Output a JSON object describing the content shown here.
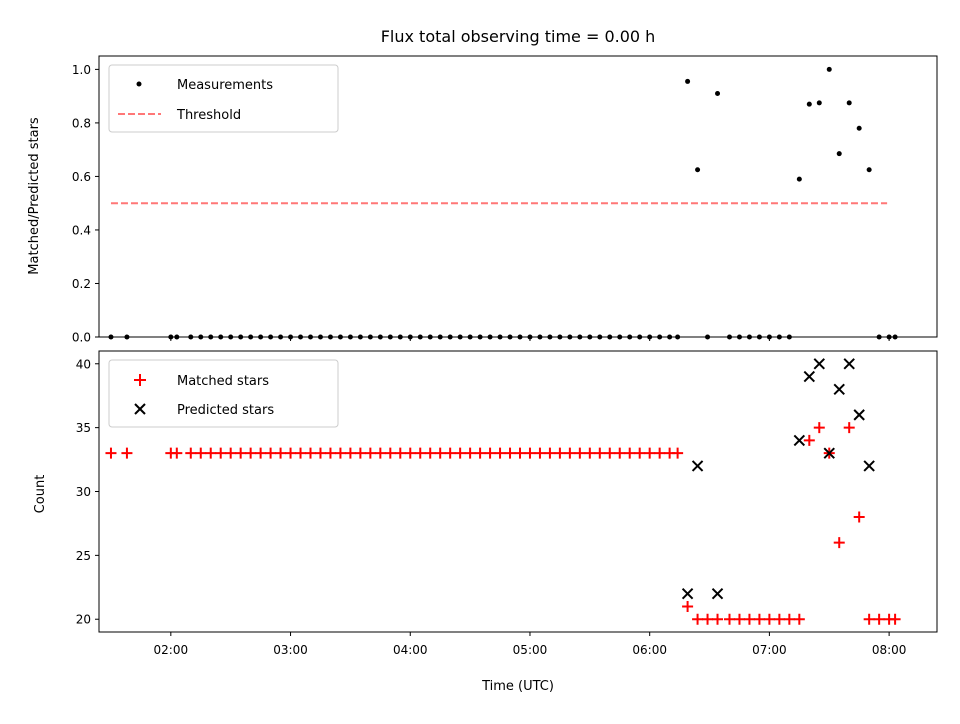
{
  "chart_data": [
    {
      "type": "scatter",
      "title": "Flux total observing time = 0.00 h",
      "xlabel": "",
      "ylabel": "Matched/Predicted stars",
      "xlim": [
        "01:24",
        "08:24"
      ],
      "ylim": [
        0.0,
        1.05
      ],
      "yticks": [
        "0.0",
        "0.2",
        "0.4",
        "0.6",
        "0.8",
        "1.0"
      ],
      "xticks": [
        "02:00",
        "03:00",
        "04:00",
        "05:00",
        "06:00",
        "07:00",
        "08:00"
      ],
      "legend_position": "top-left",
      "grid": false,
      "series": [
        {
          "name": "Measurements",
          "marker": "dot",
          "color": "#000000",
          "x": [
            "01:30",
            "01:38",
            "02:00",
            "02:03",
            "02:10",
            "02:15",
            "02:20",
            "02:25",
            "02:30",
            "02:35",
            "02:40",
            "02:45",
            "02:50",
            "02:55",
            "03:00",
            "03:05",
            "03:10",
            "03:15",
            "03:20",
            "03:25",
            "03:30",
            "03:35",
            "03:40",
            "03:45",
            "03:50",
            "03:55",
            "04:00",
            "04:05",
            "04:10",
            "04:15",
            "04:20",
            "04:25",
            "04:30",
            "04:35",
            "04:40",
            "04:45",
            "04:50",
            "04:55",
            "05:00",
            "05:05",
            "05:10",
            "05:15",
            "05:20",
            "05:25",
            "05:30",
            "05:35",
            "05:40",
            "05:45",
            "05:50",
            "05:55",
            "06:00",
            "06:05",
            "06:10",
            "06:14",
            "06:19",
            "06:24",
            "06:29",
            "06:34",
            "06:40",
            "06:45",
            "06:50",
            "06:55",
            "07:00",
            "07:05",
            "07:10",
            "07:15",
            "07:20",
            "07:25",
            "07:30",
            "07:35",
            "07:40",
            "07:45",
            "07:50",
            "07:55",
            "08:00",
            "08:03"
          ],
          "y": [
            0,
            0,
            0,
            0,
            0,
            0,
            0,
            0,
            0,
            0,
            0,
            0,
            0,
            0,
            0,
            0,
            0,
            0,
            0,
            0,
            0,
            0,
            0,
            0,
            0,
            0,
            0,
            0,
            0,
            0,
            0,
            0,
            0,
            0,
            0,
            0,
            0,
            0,
            0,
            0,
            0,
            0,
            0,
            0,
            0,
            0,
            0,
            0,
            0,
            0,
            0,
            0,
            0,
            0,
            0.955,
            0.625,
            0,
            0.91,
            0,
            0,
            0,
            0,
            0,
            0,
            0,
            0.59,
            0.87,
            0.875,
            1.0,
            0.685,
            0.875,
            0.78,
            0.625,
            0,
            0,
            0
          ]
        },
        {
          "name": "Threshold",
          "style": "dashed",
          "color": "#ff7777",
          "x": [
            "01:30",
            "07:59"
          ],
          "y": [
            0.5,
            0.5
          ]
        }
      ]
    },
    {
      "type": "scatter",
      "title": "",
      "xlabel": "Time (UTC)",
      "ylabel": "Count",
      "xlim": [
        "01:24",
        "08:24"
      ],
      "ylim": [
        19.0,
        41.0
      ],
      "yticks": [
        "20",
        "25",
        "30",
        "35",
        "40"
      ],
      "xticks": [
        "02:00",
        "03:00",
        "04:00",
        "05:00",
        "06:00",
        "07:00",
        "08:00"
      ],
      "legend_position": "top-left",
      "grid": false,
      "series": [
        {
          "name": "Matched stars",
          "marker": "plus",
          "color": "#ff0000",
          "x": [
            "01:30",
            "01:38",
            "02:00",
            "02:03",
            "02:10",
            "02:15",
            "02:20",
            "02:25",
            "02:30",
            "02:35",
            "02:40",
            "02:45",
            "02:50",
            "02:55",
            "03:00",
            "03:05",
            "03:10",
            "03:15",
            "03:20",
            "03:25",
            "03:30",
            "03:35",
            "03:40",
            "03:45",
            "03:50",
            "03:55",
            "04:00",
            "04:05",
            "04:10",
            "04:15",
            "04:20",
            "04:25",
            "04:30",
            "04:35",
            "04:40",
            "04:45",
            "04:50",
            "04:55",
            "05:00",
            "05:05",
            "05:10",
            "05:15",
            "05:20",
            "05:25",
            "05:30",
            "05:35",
            "05:40",
            "05:45",
            "05:50",
            "05:55",
            "06:00",
            "06:05",
            "06:10",
            "06:14",
            "06:19",
            "06:24",
            "06:29",
            "06:34",
            "06:40",
            "06:45",
            "06:50",
            "06:55",
            "07:00",
            "07:05",
            "07:10",
            "07:15",
            "07:20",
            "07:25",
            "07:30",
            "07:35",
            "07:40",
            "07:45",
            "07:50",
            "07:55",
            "08:00",
            "08:03"
          ],
          "y": [
            33,
            33,
            33,
            33,
            33,
            33,
            33,
            33,
            33,
            33,
            33,
            33,
            33,
            33,
            33,
            33,
            33,
            33,
            33,
            33,
            33,
            33,
            33,
            33,
            33,
            33,
            33,
            33,
            33,
            33,
            33,
            33,
            33,
            33,
            33,
            33,
            33,
            33,
            33,
            33,
            33,
            33,
            33,
            33,
            33,
            33,
            33,
            33,
            33,
            33,
            33,
            33,
            33,
            33,
            21,
            20,
            20,
            20,
            20,
            20,
            20,
            20,
            20,
            20,
            20,
            20,
            34,
            35,
            33,
            26,
            35,
            28,
            20,
            20,
            20,
            20
          ]
        },
        {
          "name": "Predicted stars",
          "marker": "x",
          "color": "#000000",
          "x": [
            "06:19",
            "06:24",
            "06:34",
            "07:15",
            "07:20",
            "07:25",
            "07:30",
            "07:35",
            "07:40",
            "07:45",
            "07:50"
          ],
          "y": [
            22,
            32,
            22,
            34,
            39,
            40,
            33,
            38,
            40,
            36,
            32
          ]
        }
      ]
    }
  ]
}
